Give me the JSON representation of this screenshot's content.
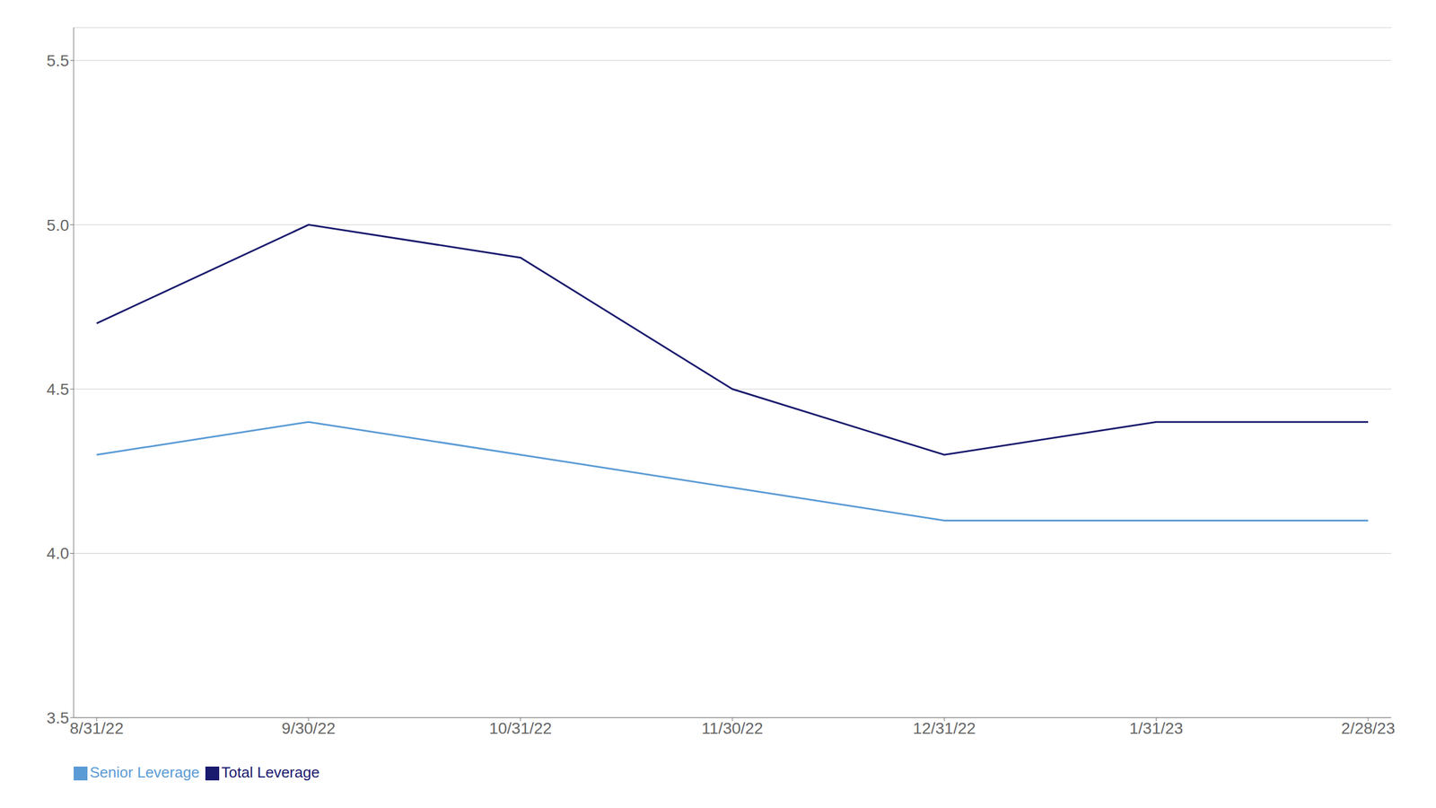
{
  "chart_data": {
    "type": "line",
    "categories": [
      "8/31/22",
      "9/30/22",
      "10/31/22",
      "11/30/22",
      "12/31/22",
      "1/31/23",
      "2/28/23"
    ],
    "series": [
      {
        "name": "Total Leverage",
        "color": "#1a1a6e",
        "values": [
          4.7,
          5.0,
          4.9,
          4.5,
          4.3,
          4.4,
          4.4
        ]
      },
      {
        "name": "Senior Leverage",
        "color": "#5b9bd5",
        "values": [
          4.3,
          4.4,
          4.3,
          4.2,
          4.1,
          4.1,
          4.1
        ]
      }
    ],
    "ylim": [
      3.5,
      5.6
    ],
    "yticks": [
      3.5,
      {
        "value": 4,
        "label": "4.0"
      },
      4.5,
      {
        "value": 5,
        "label": "5.0"
      },
      5.5
    ],
    "grid": true,
    "legend": "lower left"
  }
}
